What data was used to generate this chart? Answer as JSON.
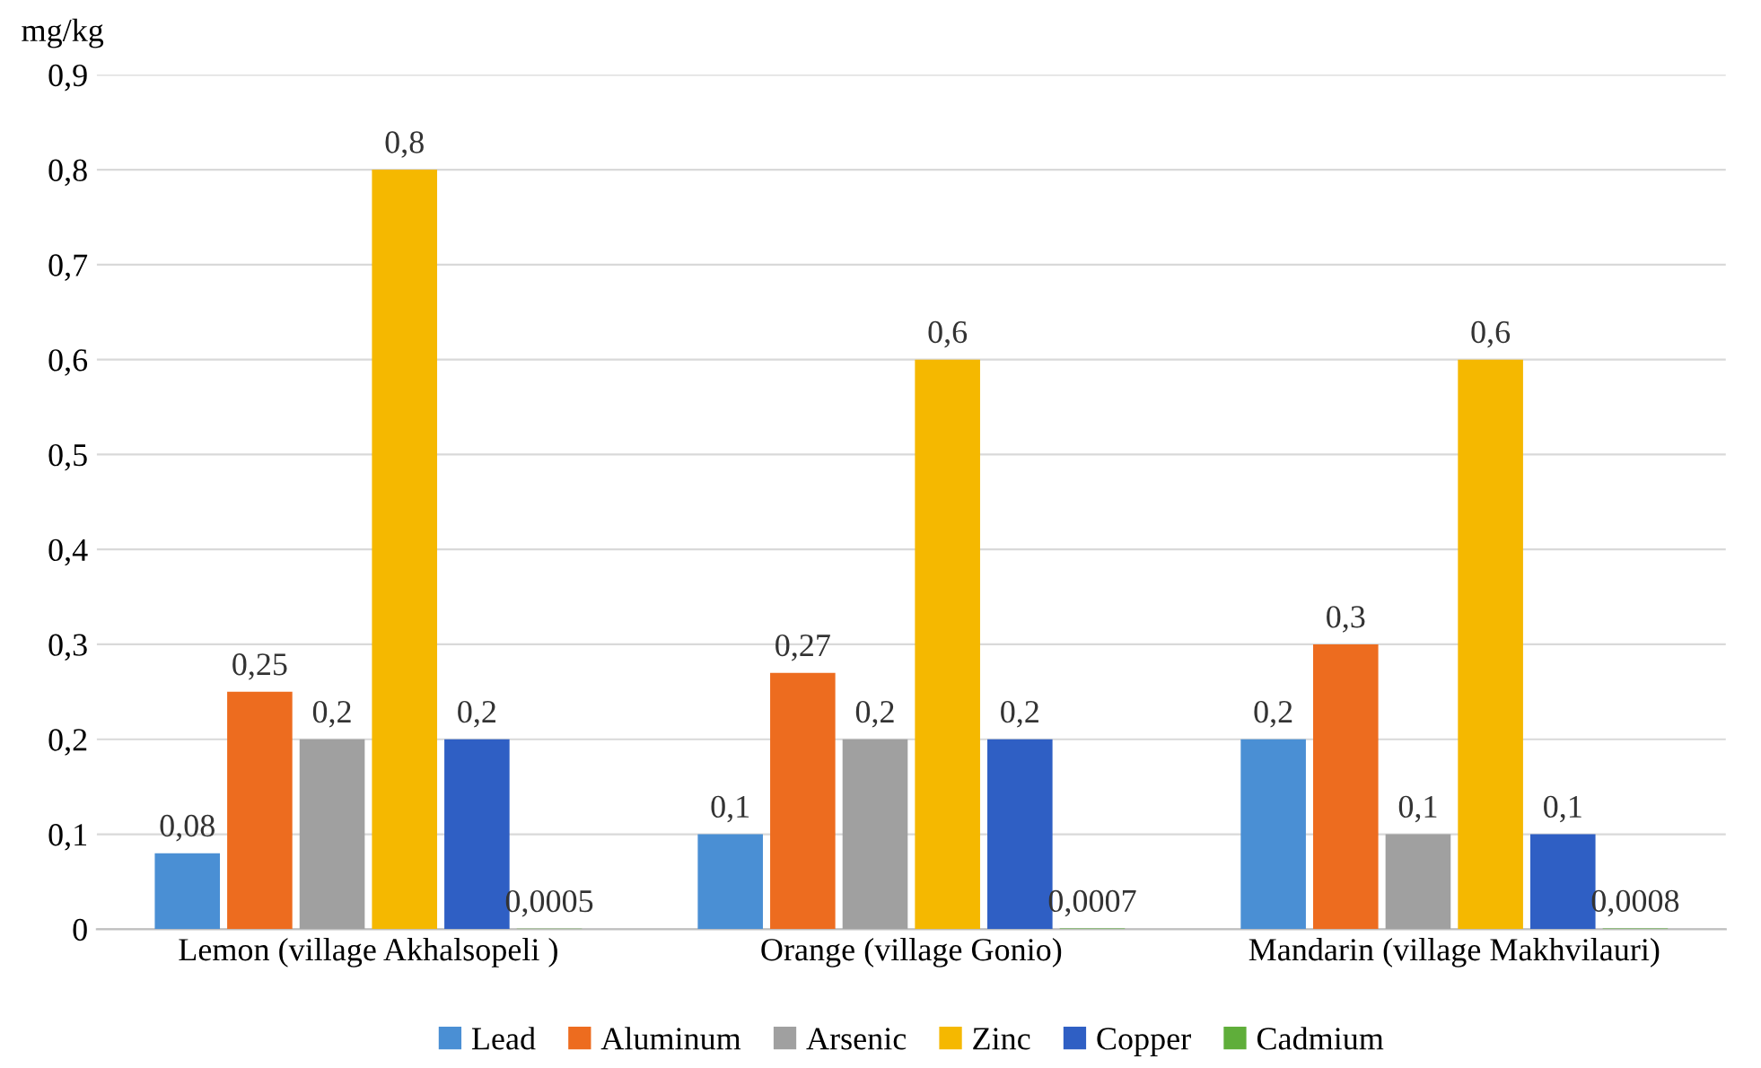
{
  "chart_data": {
    "type": "bar",
    "ylabel": "mg/kg",
    "categories": [
      "Lemon (village Akhalsopeli )",
      "Orange (village Gonio)",
      "Mandarin (village Makhvilauri)"
    ],
    "series": [
      {
        "name": "Lead",
        "color": "#4a8fd4",
        "values": [
          0.08,
          0.1,
          0.2
        ],
        "value_labels": [
          "0,08",
          "0,1",
          "0,2"
        ]
      },
      {
        "name": "Aluminum",
        "color": "#ed6c1f",
        "values": [
          0.25,
          0.27,
          0.3
        ],
        "value_labels": [
          "0,25",
          "0,27",
          "0,3"
        ]
      },
      {
        "name": "Arsenic",
        "color": "#a0a0a0",
        "values": [
          0.2,
          0.2,
          0.1
        ],
        "value_labels": [
          "0,2",
          "0,2",
          "0,1"
        ]
      },
      {
        "name": "Zinc",
        "color": "#f5b800",
        "values": [
          0.8,
          0.6,
          0.6
        ],
        "value_labels": [
          "0,8",
          "0,6",
          "0,6"
        ]
      },
      {
        "name": "Copper",
        "color": "#2f5fc4",
        "values": [
          0.2,
          0.2,
          0.1
        ],
        "value_labels": [
          "0,2",
          "0,2",
          "0,1"
        ]
      },
      {
        "name": "Cadmium",
        "color": "#5fae3a",
        "values": [
          0.0005,
          0.0007,
          0.0008
        ],
        "value_labels": [
          "0,0005",
          "0,0007",
          "0,0008"
        ]
      }
    ],
    "ylim": [
      0,
      0.9
    ],
    "yticks": [
      0,
      {
        "value": 0.1,
        "label": "0,1"
      },
      {
        "value": 0.2,
        "label": "0,2"
      },
      {
        "value": 0.3,
        "label": "0,3"
      },
      {
        "value": 0.4,
        "label": "0,4"
      },
      {
        "value": 0.5,
        "label": "0,5"
      },
      {
        "value": 0.6,
        "label": "0,6"
      },
      {
        "value": 0.7,
        "label": "0,7"
      },
      {
        "value": 0.8,
        "label": "0,8"
      },
      {
        "value": 0.9,
        "label": "0,9"
      }
    ],
    "grid": "y",
    "legend": "bottom"
  }
}
